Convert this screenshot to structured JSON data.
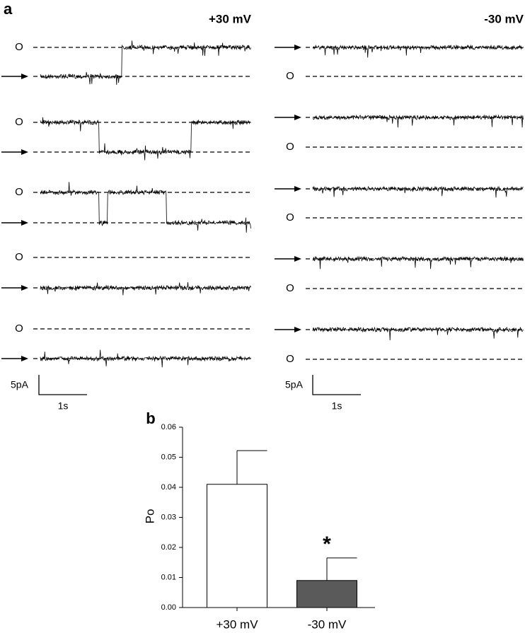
{
  "panel_a": {
    "label": "a",
    "conditions": [
      "+30 mV",
      "-30 mV"
    ],
    "open_label": "O",
    "scale_current": "5pA",
    "scale_time": "1s"
  },
  "chart_data": {
    "type": "bar",
    "panel_label": "b",
    "ylabel": "Po",
    "categories": [
      "+30 mV",
      "-30 mV"
    ],
    "values": [
      0.041,
      0.009
    ],
    "errors": [
      0.0112,
      0.0075
    ],
    "colors": [
      "#ffffff",
      "#5a5a5a"
    ],
    "ylim": [
      0,
      0.06
    ],
    "yticks": [
      {
        "value": 0,
        "label": "0.00"
      },
      0.01,
      0.02,
      0.03,
      0.04,
      0.05,
      0.06
    ],
    "annotations": [
      {
        "text": "*",
        "category": 1
      }
    ]
  }
}
